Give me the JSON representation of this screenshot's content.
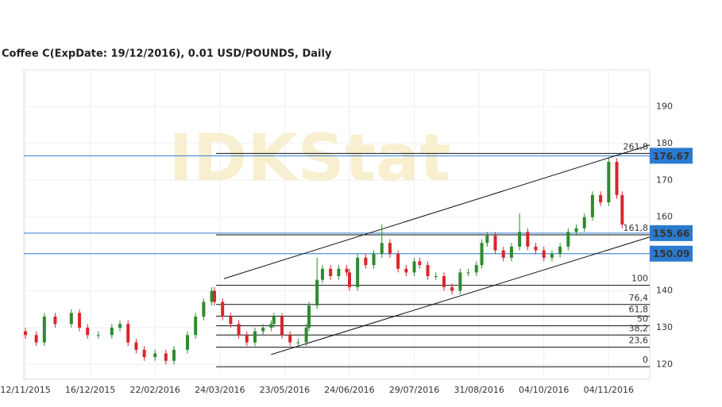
{
  "chart_data": {
    "type": "candlestick",
    "title": "Coffee C(ExpDate: 19/12/2016), 0.01 USD/POUNDS, Daily",
    "watermark": "IDKStat",
    "xlim": [
      -0.6,
      231.2
    ],
    "ylim": [
      116,
      200
    ],
    "yticks": [
      120,
      130,
      140,
      150,
      160,
      170,
      180,
      190
    ],
    "xticks": [
      {
        "value": 0,
        "label": "12/11/2015"
      },
      {
        "value": 24,
        "label": "16/12/2015"
      },
      {
        "value": 48,
        "label": "22/02/2016"
      },
      {
        "value": 72,
        "label": "24/03/2016"
      },
      {
        "value": 96,
        "label": "23/05/2016"
      },
      {
        "value": 120,
        "label": "24/06/2016"
      },
      {
        "value": 144,
        "label": "29/07/2016"
      },
      {
        "value": 168,
        "label": "31/08/2016"
      },
      {
        "value": 192,
        "label": "04/10/2016"
      },
      {
        "value": 216,
        "label": "04/11/2016"
      }
    ],
    "up_color": "#2e8b2e",
    "down_color": "#d9262b",
    "x": [
      0,
      4,
      7,
      11,
      17,
      20,
      23,
      27,
      32,
      35,
      38,
      41,
      44,
      48,
      52,
      55,
      60,
      63,
      66,
      69,
      70,
      73,
      76,
      79,
      82,
      85,
      88,
      91,
      92,
      95,
      98,
      101,
      104,
      105,
      108,
      110,
      113,
      116,
      119,
      120,
      123,
      126,
      129,
      132,
      135,
      138,
      141,
      144,
      146,
      149,
      152,
      155,
      158,
      161,
      164,
      167,
      169,
      171,
      174,
      177,
      180,
      183,
      186,
      189,
      192,
      195,
      198,
      201,
      204,
      207,
      210,
      213,
      216,
      219,
      221
    ],
    "open": [
      129,
      128,
      126,
      133,
      131,
      134,
      130,
      128,
      128,
      130,
      131,
      126,
      124,
      122,
      123,
      121,
      124,
      128,
      133,
      137,
      140,
      137,
      133,
      131,
      128,
      126,
      129,
      130,
      131,
      133,
      128,
      126,
      126,
      130,
      136,
      143,
      146,
      144,
      146,
      145,
      141,
      149,
      147,
      150,
      153,
      150,
      146,
      145,
      148,
      147,
      144,
      144,
      141,
      140,
      145,
      145,
      147,
      153,
      155,
      151,
      149,
      152,
      156,
      152,
      151,
      149,
      150,
      152,
      156,
      157,
      160,
      166,
      164,
      175,
      166
    ],
    "high": [
      130,
      129,
      134,
      134,
      135,
      135,
      131,
      129,
      131,
      132,
      132,
      127,
      125,
      124,
      124,
      125,
      129,
      134,
      138,
      141,
      141,
      138,
      134,
      132,
      129,
      130,
      131,
      132,
      134,
      134,
      129,
      127,
      131,
      137,
      149,
      147,
      147,
      147,
      147,
      146,
      150,
      150,
      151,
      158,
      154,
      151,
      147,
      149,
      149,
      148,
      145,
      145,
      142,
      146,
      146,
      148,
      154,
      156,
      156,
      152,
      153,
      161,
      157,
      153,
      152,
      151,
      153,
      157,
      158,
      161,
      167,
      167,
      176,
      176,
      167
    ],
    "low": [
      127,
      125,
      125,
      130,
      130,
      129,
      127,
      127,
      127,
      129,
      125,
      123,
      121,
      121,
      120,
      120,
      123,
      127,
      132,
      136,
      136,
      132,
      130,
      127,
      125,
      125,
      128,
      129,
      130,
      127,
      125,
      125,
      125,
      129,
      135,
      142,
      143,
      143,
      144,
      140,
      140,
      146,
      146,
      149,
      149,
      145,
      144,
      144,
      146,
      143,
      143,
      140,
      139,
      139,
      144,
      144,
      146,
      152,
      150,
      148,
      148,
      151,
      151,
      150,
      148,
      148,
      149,
      151,
      155,
      156,
      159,
      163,
      163,
      165,
      157
    ],
    "close": [
      128,
      126,
      133,
      131,
      134,
      130,
      128,
      128,
      130,
      131,
      126,
      124,
      122,
      123,
      121,
      124,
      128,
      133,
      137,
      140,
      137,
      133,
      131,
      128,
      126,
      129,
      130,
      131,
      133,
      128,
      126,
      126,
      130,
      136,
      143,
      146,
      144,
      146,
      145,
      141,
      149,
      147,
      150,
      153,
      150,
      146,
      145,
      148,
      147,
      144,
      144,
      141,
      140,
      145,
      145,
      147,
      153,
      155,
      151,
      149,
      152,
      156,
      152,
      151,
      149,
      150,
      152,
      156,
      157,
      160,
      166,
      164,
      175,
      166,
      158
    ],
    "levels": [
      {
        "value": 176.67,
        "label": "176.67"
      },
      {
        "value": 155.66,
        "label": "155.66"
      },
      {
        "value": 150.09,
        "label": "150.09"
      }
    ],
    "level_color": "#2a7bd0",
    "fibonacci": {
      "x_start": 70.6,
      "levels": [
        {
          "value": 177.3,
          "label": "261,8"
        },
        {
          "value": 155.2,
          "label": "161,8"
        },
        {
          "value": 141.5,
          "label": "100"
        },
        {
          "value": 136.3,
          "label": "76,4"
        },
        {
          "value": 133.1,
          "label": "61,8"
        },
        {
          "value": 130.5,
          "label": "50"
        },
        {
          "value": 128,
          "label": "38,2"
        },
        {
          "value": 124.7,
          "label": "23,6"
        },
        {
          "value": 119.4,
          "label": "0"
        }
      ]
    },
    "trendlines": [
      {
        "x": [
          73.5,
          231.2
        ],
        "y": [
          143.3,
          179.6
        ]
      },
      {
        "x": [
          91,
          231.2
        ],
        "y": [
          122.7,
          154.6
        ]
      }
    ]
  }
}
